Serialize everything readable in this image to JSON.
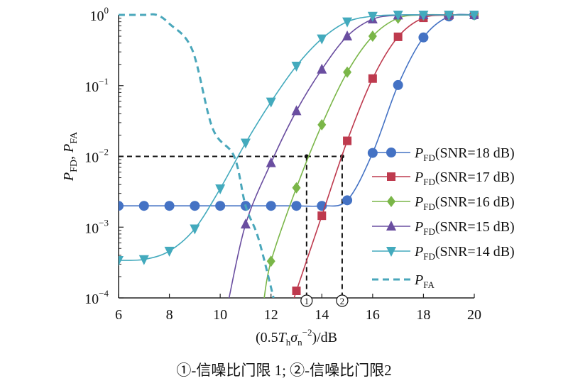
{
  "chart_data": {
    "type": "line",
    "title": "",
    "xlabel": "(0.5T_h σ_n^-2)/dB",
    "xlabel_parts": {
      "pre": "(0.5",
      "T": "T",
      "h": "h",
      "sigma": "σ",
      "n": "n",
      "exp": "−2",
      "post": ")/dB"
    },
    "ylabel_parts": {
      "P1": "P",
      "s1": "FD",
      "comma": ", ",
      "P2": "P",
      "s2": "FA"
    },
    "xlim": [
      6,
      20
    ],
    "ylim": [
      0.0001,
      1
    ],
    "yscale": "log",
    "xticks": [
      "6",
      "8",
      "10",
      "12",
      "14",
      "16",
      "18",
      "20"
    ],
    "yticks": [
      {
        "base": "10",
        "exp": "0"
      },
      {
        "base": "10",
        "exp": "−1"
      },
      {
        "base": "10",
        "exp": "−2"
      },
      {
        "base": "10",
        "exp": "−3"
      },
      {
        "base": "10",
        "exp": "−4"
      }
    ],
    "legend_position": "right",
    "series": [
      {
        "name": "P_FD(SNR=18 dB)",
        "label_main": "P",
        "label_sub": "FD",
        "label_rest": "(SNR=18 dB)",
        "color": "#4472c4",
        "marker": "circle",
        "x": [
          6,
          7,
          8,
          9,
          10,
          11,
          12,
          13,
          14,
          15,
          16,
          17,
          18,
          19,
          20
        ],
        "values": [
          0.002,
          0.002,
          0.002,
          0.002,
          0.002,
          0.002,
          0.002,
          0.002,
          0.002,
          0.0024,
          0.0112,
          0.102,
          0.48,
          0.95,
          1.0
        ]
      },
      {
        "name": "P_FD(SNR=17 dB)",
        "label_main": "P",
        "label_sub": "FD",
        "label_rest": "(SNR=17 dB)",
        "color": "#be3a4e",
        "marker": "square",
        "x": [
          13,
          14,
          15,
          16,
          17,
          18,
          19,
          20
        ],
        "values": [
          0.000126,
          0.00145,
          0.0166,
          0.126,
          0.49,
          0.91,
          0.99,
          1.0
        ],
        "tail": [
          12.85,
          0.0001
        ]
      },
      {
        "name": "P_FD(SNR=16 dB)",
        "label_main": "P",
        "label_sub": "FD",
        "label_rest": "(SNR=16 dB)",
        "color": "#7ab648",
        "marker": "diamond",
        "x": [
          12,
          13,
          14,
          15,
          16,
          17,
          18,
          19,
          20
        ],
        "values": [
          0.00033,
          0.0036,
          0.028,
          0.155,
          0.5,
          0.9,
          1.0,
          1.0,
          1.0
        ],
        "tail": [
          11.7,
          0.0001
        ]
      },
      {
        "name": "P_FD(SNR=15 dB)",
        "label_main": "P",
        "label_sub": "FD",
        "label_rest": "(SNR=15 dB)",
        "color": "#6a4ea0",
        "marker": "triangle-up",
        "x": [
          11,
          12,
          13,
          14,
          15,
          16,
          17,
          18,
          19,
          20
        ],
        "values": [
          0.0011,
          0.0081,
          0.044,
          0.17,
          0.5,
          0.87,
          0.99,
          1.0,
          1.0,
          1.0
        ],
        "tail": [
          10.3,
          0.0001
        ]
      },
      {
        "name": "P_FD(SNR=14 dB)",
        "label_main": "P",
        "label_sub": "FD",
        "label_rest": "(SNR=14 dB)",
        "color": "#43aabd",
        "marker": "triangle-down",
        "x": [
          6,
          7,
          8,
          9,
          10,
          11,
          12,
          13,
          14,
          15,
          16,
          17,
          18,
          19,
          20
        ],
        "values": [
          0.00034,
          0.00035,
          0.00046,
          0.00095,
          0.0035,
          0.0155,
          0.059,
          0.19,
          0.46,
          0.8,
          0.96,
          1.0,
          1.0,
          1.0,
          1.0
        ]
      },
      {
        "name": "P_FA",
        "label_main": "P",
        "label_sub": "FA",
        "label_rest": "",
        "color": "#4aa7bb",
        "marker": "none",
        "dashed": true,
        "x": [
          6,
          7,
          7.5,
          8,
          8.9,
          9.7,
          10.55,
          11.0,
          11.5,
          12.1
        ],
        "values": [
          1.0,
          1.0,
          1.0,
          0.75,
          0.32,
          0.025,
          0.01,
          0.002,
          0.0007,
          0.0001
        ]
      }
    ],
    "annotations": {
      "threshold_level": 0.01,
      "thresholds": [
        {
          "x": 13.4,
          "label": "①"
        },
        {
          "x": 14.8,
          "label": "②"
        }
      ]
    }
  },
  "caption": "①-信噪比门限 1; ②-信噪比门限2"
}
